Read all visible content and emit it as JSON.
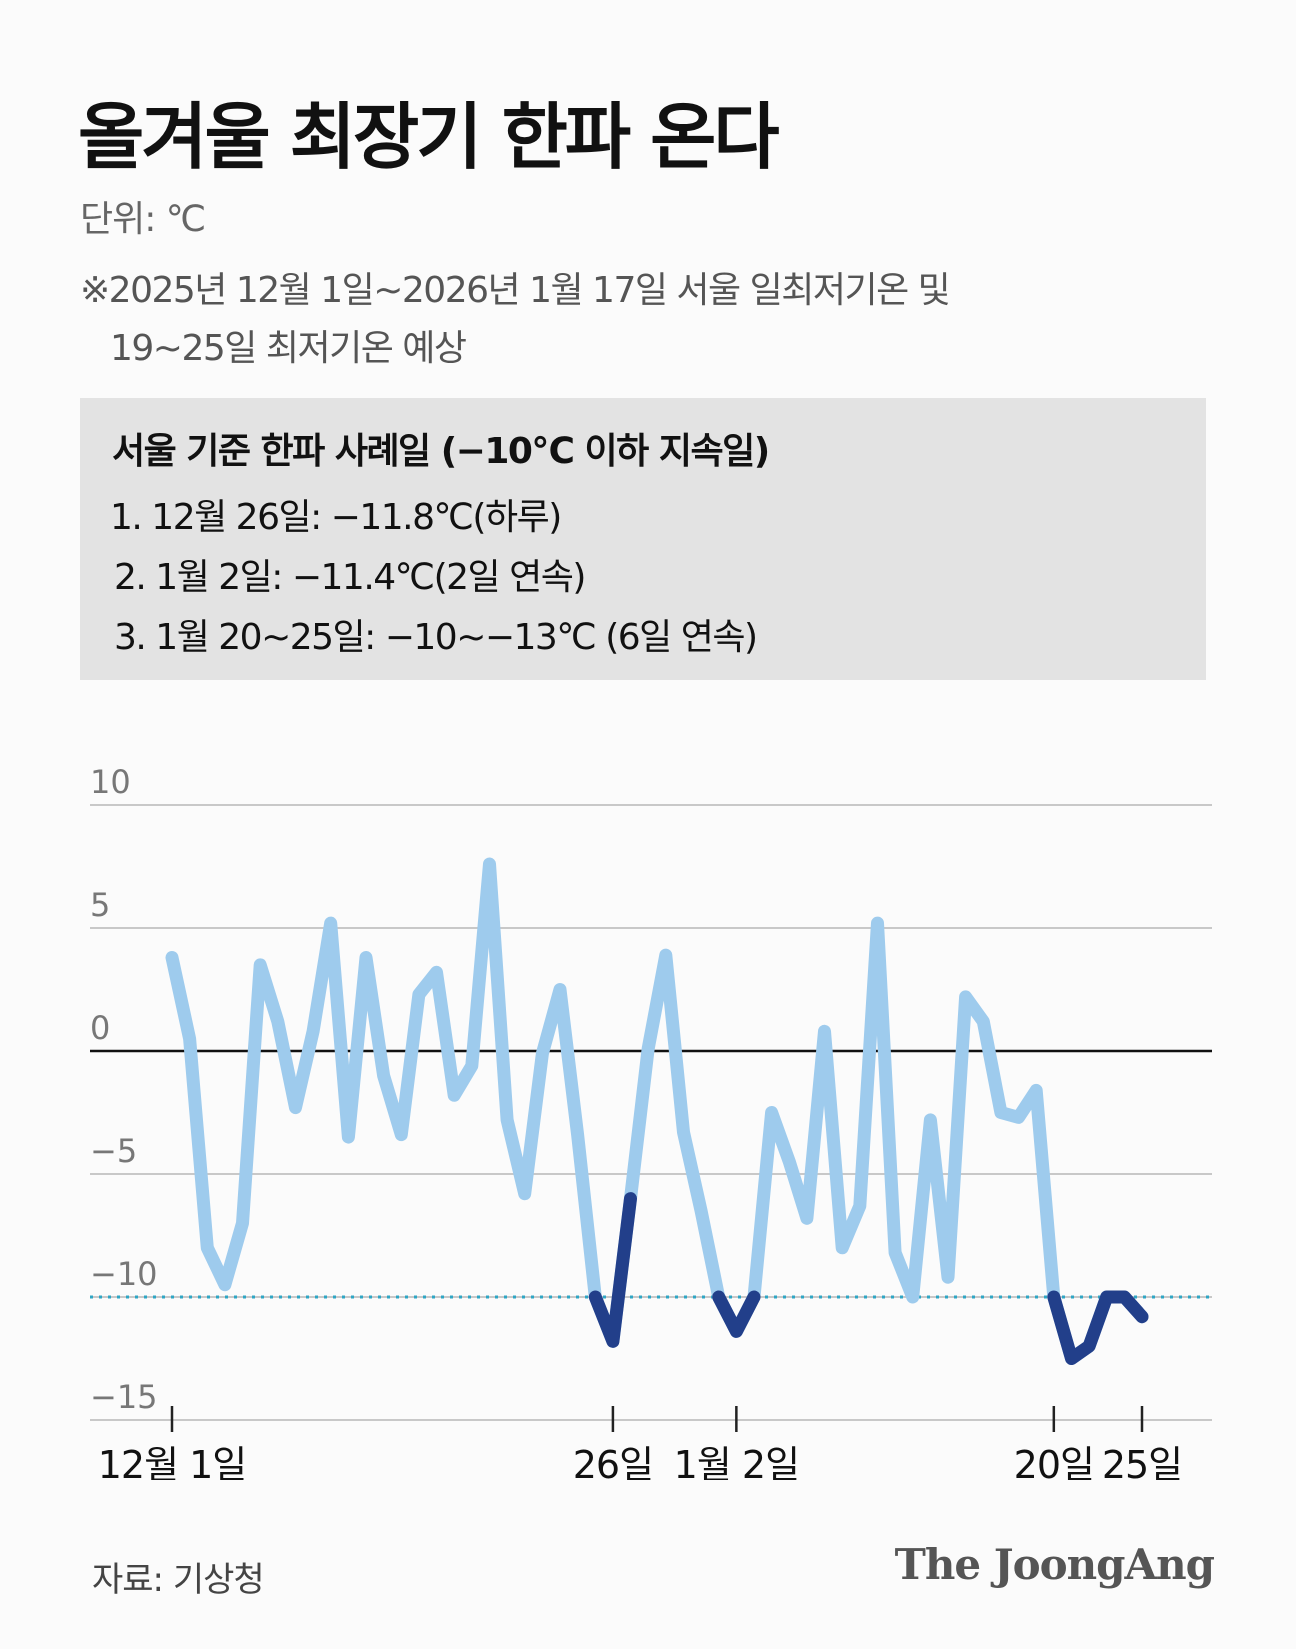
{
  "header": {
    "title": "올겨울 최장기 한파 온다",
    "unit": "단위: ℃",
    "note_line1": "※2025년 12월 1일~2026년 1월 17일 서울 일최저기온 및",
    "note_line2": "19~25일 최저기온 예상"
  },
  "box": {
    "title": "서울 기준 한파 사례일 (−10℃ 이하 지속일)",
    "items": [
      "1. 12월 26일: −11.8℃(하루)",
      "2. 1월 2일: −11.4℃(2일 연속)",
      "3. 1월 20~25일: −10~−13℃ (6일 연속)"
    ]
  },
  "footer": {
    "source": "자료: 기상청",
    "brand": "The JoongAng"
  },
  "colors": {
    "line_light": "#9ecbed",
    "line_dark": "#223f8a",
    "threshold": "#2ea6c4",
    "grid": "#c8c8c8",
    "zero": "#111111"
  },
  "chart_data": {
    "type": "line",
    "title": "올겨울 최장기 한파 온다",
    "xlabel": "",
    "ylabel": "℃",
    "ylim": [
      -15,
      10
    ],
    "y_ticks": [
      10,
      5,
      0,
      -5,
      -10,
      -15
    ],
    "y_tick_labels": [
      "10",
      "5",
      "0",
      "−5",
      "−10",
      "−15"
    ],
    "threshold": -10,
    "x_ticks": [
      {
        "day": 0,
        "label": "12월 1일"
      },
      {
        "day": 25,
        "label": "26일"
      },
      {
        "day": 32,
        "label": "1월 2일"
      },
      {
        "day": 50,
        "label": "20일"
      },
      {
        "day": 55,
        "label": "25일"
      }
    ],
    "series": [
      {
        "name": "서울 일최저기온",
        "x": [
          0,
          1,
          2,
          3,
          4,
          5,
          6,
          7,
          8,
          9,
          10,
          11,
          12,
          13,
          14,
          15,
          16,
          17,
          18,
          19,
          20,
          21,
          22,
          23,
          24,
          25,
          26,
          27,
          28,
          29,
          30,
          31,
          32,
          33,
          34,
          35,
          36,
          37,
          38,
          39,
          40,
          41,
          42,
          43,
          44,
          45,
          46,
          47,
          48,
          49,
          50,
          51,
          52,
          53,
          54,
          55
        ],
        "values": [
          3.8,
          0.5,
          -8,
          -9.5,
          -7,
          3.5,
          1.2,
          -2.3,
          0.8,
          5.2,
          -3.5,
          3.8,
          -1,
          -3.4,
          2.3,
          3.2,
          -1.8,
          -0.6,
          7.6,
          -2.8,
          -5.8,
          -0.1,
          2.5,
          -3.4,
          -10,
          -11.8,
          -6,
          0.1,
          3.9,
          -3.3,
          -6.5,
          -10,
          -11.4,
          -10,
          -2.5,
          -4.5,
          -6.8,
          0.8,
          -8,
          -6.3,
          5.2,
          -8.2,
          -10,
          -2.8,
          -9.2,
          2.2,
          1.2,
          -2.5,
          -2.7,
          -1.6,
          -10,
          -12.5,
          -12,
          -10,
          -10,
          -10.8
        ]
      }
    ],
    "cold_wave_segments": [
      [
        24,
        26
      ],
      [
        31,
        33
      ],
      [
        50,
        55
      ]
    ]
  }
}
